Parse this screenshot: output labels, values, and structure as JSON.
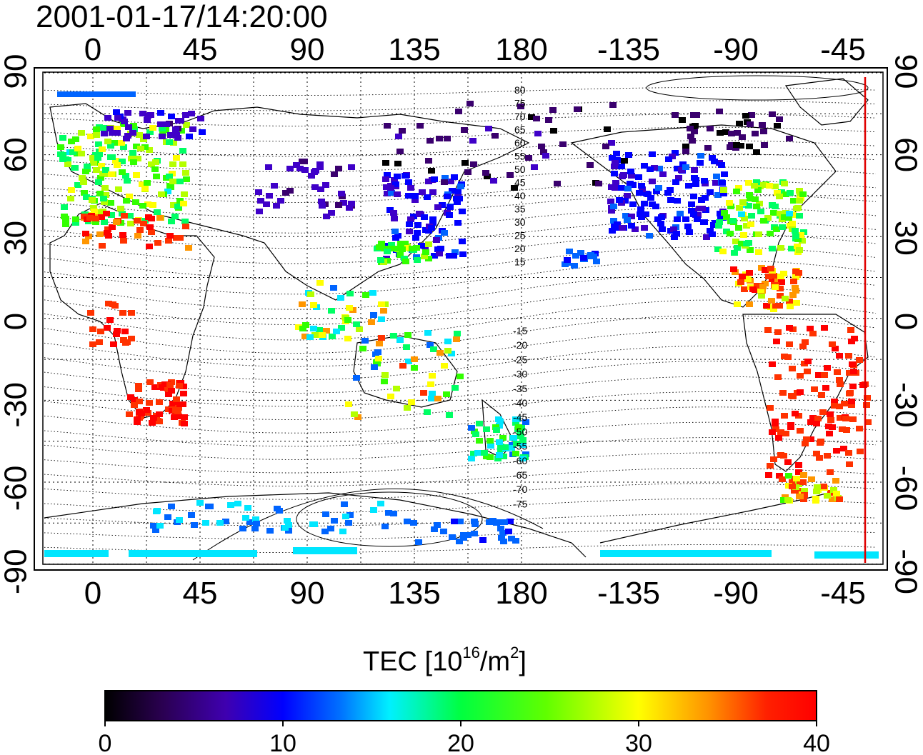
{
  "title": "2001-01-17/14:20:00",
  "map": {
    "lon_tick_labels": [
      "0",
      "45",
      "90",
      "135",
      "180",
      "-135",
      "-90",
      "-45"
    ],
    "lat_tick_labels": [
      "90",
      "60",
      "30",
      "0",
      "-30",
      "-60",
      "-90"
    ],
    "right_lat_tick_labels": [
      "90",
      "60",
      "30",
      "0",
      "-30",
      "-60",
      "-90"
    ],
    "contour_labels_north": [
      "80",
      "75",
      "70",
      "65",
      "60",
      "55",
      "50",
      "45",
      "40",
      "35",
      "30",
      "25",
      "20",
      "15"
    ],
    "contour_labels_south": [
      "-15",
      "-20",
      "-25",
      "-30",
      "-35",
      "-40",
      "-45",
      "-50",
      "-55",
      "-60",
      "-65",
      "-70",
      "-75"
    ],
    "terminator_color": "#e00000",
    "grid": "dotted"
  },
  "colorbar": {
    "label_prefix": "TEC  [10",
    "label_exp": "16",
    "label_mid": "/m",
    "label_exp2": "2",
    "label_suffix": "]",
    "ticks": [
      "0",
      "10",
      "20",
      "30",
      "40"
    ],
    "range": [
      0,
      40
    ],
    "colormap": [
      "#000000",
      "#3a006e",
      "#3f00c8",
      "#0000ff",
      "#0064ff",
      "#00e6ff",
      "#00ff64",
      "#32ff00",
      "#b4ff00",
      "#ffff00",
      "#ff9600",
      "#ff3200",
      "#ff0000"
    ]
  }
}
